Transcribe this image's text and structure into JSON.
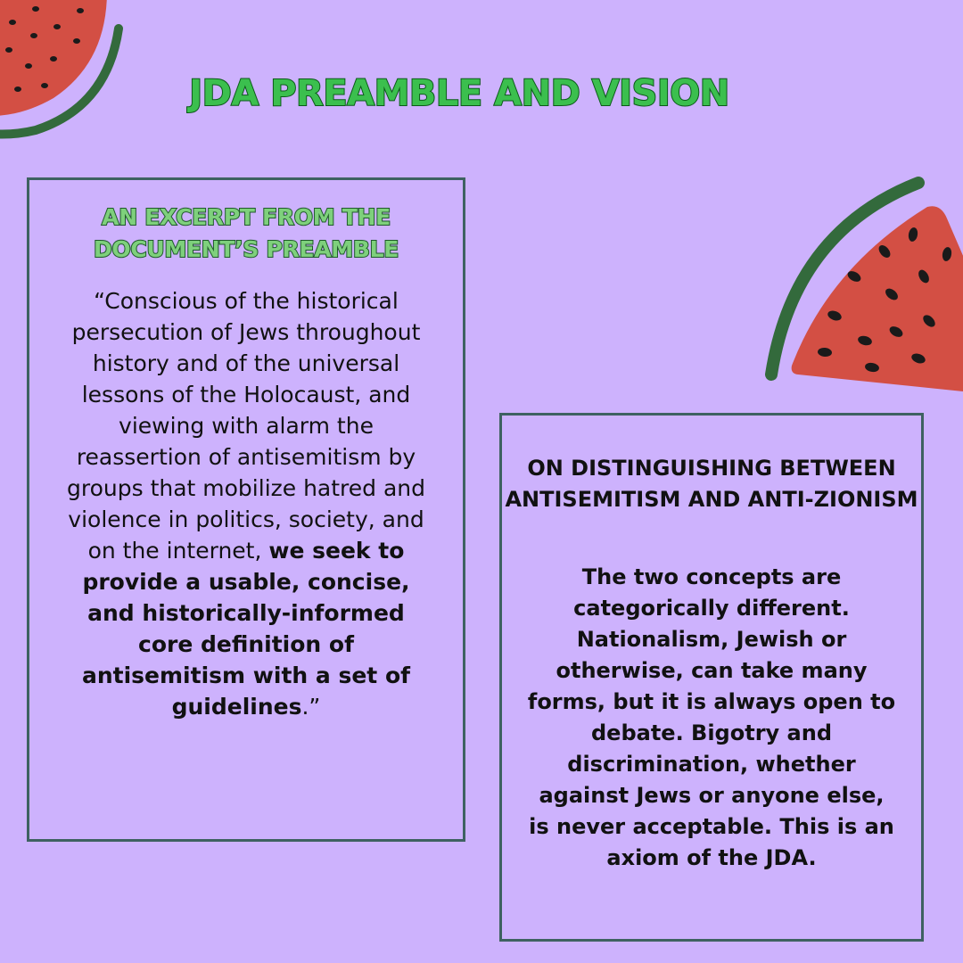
{
  "title": "JDA PREAMBLE AND VISION",
  "left_box": {
    "heading": "AN EXCERPT FROM THE DOCUMENT’S PREAMBLE",
    "quote_open": "“Conscious of the historical persecution of Jews throughout history and of the universal lessons of the Holocaust, and viewing with alarm the reassertion of antisemitism by groups that mobilize hatred and violence in politics, society, and on the internet,",
    "quote_bold": "we seek to provide a usable, concise, and historically-informed core definition of antisemitism with a set of guidelines",
    "quote_close": ".”"
  },
  "right_box": {
    "heading": "ON DISTINGUISHING BETWEEN ANTISEMITISM AND ANTI-ZIONISM",
    "body": "The two concepts are categorically different. Nationalism, Jewish or otherwise, can take many forms, but it is always open to debate. Bigotry and discrimination, whether against Jews or anyone else, is never acceptable. This is an axiom of the JDA."
  },
  "colors": {
    "background": "#cdb2fd",
    "watermelon_flesh": "#d34f44",
    "watermelon_rind": "#336a3c",
    "box_border": "#3e6161",
    "title_fill": "#3bbf4e"
  }
}
